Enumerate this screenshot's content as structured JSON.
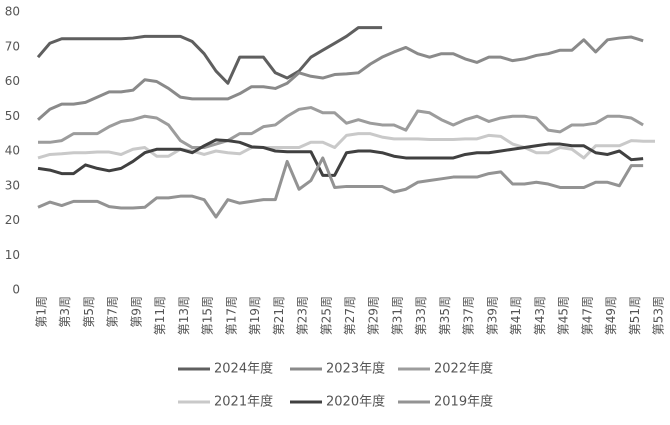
{
  "chart_data": {
    "type": "line",
    "categories": [
      "第1周",
      null,
      "第3周",
      null,
      "第5周",
      null,
      "第7周",
      null,
      "第9周",
      null,
      "第11周",
      null,
      "第13周",
      null,
      "第15周",
      null,
      "第17周",
      null,
      "第19周",
      null,
      "第21周",
      null,
      "第23周",
      null,
      "第25周",
      null,
      "第27周",
      null,
      "第29周",
      null,
      "第31周",
      null,
      "第33周",
      null,
      "第35周",
      null,
      "第37周",
      null,
      "第39周",
      null,
      "第41周",
      null,
      "第43周",
      null,
      "第45周",
      null,
      "第47周",
      null,
      "第49周",
      null,
      "第51周",
      null,
      "第53周"
    ],
    "series": [
      {
        "name": "2024年度",
        "color": "#5f5f5f",
        "values": [
          67,
          71,
          72.3,
          72.3,
          72.3,
          72.3,
          72.3,
          72.3,
          72.5,
          73,
          73,
          73,
          73,
          71.5,
          68,
          63,
          59.5,
          67,
          67,
          67,
          62.5,
          61,
          63,
          67,
          69,
          71,
          73,
          75.5,
          75.5,
          75.5,
          null,
          null,
          null,
          null,
          null,
          null,
          null,
          null,
          null,
          null,
          null,
          null,
          null,
          null,
          null,
          null,
          null,
          null,
          null,
          null,
          null,
          null,
          null
        ]
      },
      {
        "name": "2023年度",
        "color": "#8a8a8a",
        "values": [
          49,
          52,
          53.5,
          53.5,
          54,
          55.5,
          57,
          57,
          57.5,
          60.5,
          60,
          58,
          55.5,
          55,
          55,
          55,
          55,
          56.5,
          58.5,
          58.5,
          58,
          59.5,
          62.5,
          61.5,
          61,
          62,
          62.2,
          62.5,
          65,
          67,
          68.5,
          69.8,
          68,
          67,
          68,
          68,
          66.5,
          65.5,
          67,
          67,
          66,
          66.5,
          67.5,
          68,
          69,
          69,
          72,
          68.5,
          72,
          72.5,
          72.8,
          71.7,
          null
        ]
      },
      {
        "name": "2022年度",
        "color": "#9c9c9c",
        "values": [
          42.5,
          42.5,
          43,
          45,
          45,
          45,
          47,
          48.5,
          49,
          50,
          49.5,
          47.5,
          43,
          41,
          41,
          42,
          43,
          45,
          45,
          47,
          47.5,
          50,
          52,
          52.5,
          51,
          51,
          48,
          49,
          48,
          47.5,
          47.5,
          46,
          51.5,
          51,
          49,
          47.5,
          49,
          50,
          48.5,
          49.5,
          50,
          50,
          49.5,
          46,
          45.5,
          47.5,
          47.5,
          48,
          50,
          50,
          49.5,
          47.5,
          null
        ]
      },
      {
        "name": "2021年度",
        "color": "#c9c9c9",
        "values": [
          38,
          39,
          39.2,
          39.5,
          39.5,
          39.7,
          39.7,
          39,
          40.5,
          41,
          38.5,
          38.5,
          40.5,
          40,
          39,
          40,
          39.5,
          39.2,
          41,
          41,
          41,
          41,
          41,
          42.5,
          42.5,
          41,
          44.5,
          45,
          45,
          44,
          43.5,
          43.5,
          43.5,
          43.3,
          43.3,
          43.3,
          43.5,
          43.5,
          44.5,
          44.2,
          42,
          41,
          39.5,
          39.5,
          41,
          40.5,
          38,
          41.5,
          41.5,
          41.5,
          43,
          42.8,
          42.8
        ]
      },
      {
        "name": "2020年度",
        "color": "#404040",
        "values": [
          35,
          34.5,
          33.5,
          33.5,
          36,
          35,
          34.3,
          35,
          37,
          39.5,
          40.5,
          40.5,
          40.5,
          39.5,
          41.5,
          43.2,
          43,
          42.5,
          41.2,
          41,
          40,
          39.8,
          39.8,
          39.8,
          33,
          33,
          39.5,
          40,
          40,
          39.5,
          38.5,
          38,
          38,
          38,
          38,
          38,
          39,
          39.5,
          39.5,
          40,
          40.5,
          41,
          41.5,
          42,
          42,
          41.5,
          41.5,
          39.5,
          39,
          40,
          37.5,
          37.8,
          null
        ]
      },
      {
        "name": "2019年度",
        "color": "#939393",
        "values": [
          23.8,
          25.3,
          24.3,
          25.5,
          25.5,
          25.5,
          24,
          23.6,
          23.6,
          23.8,
          26.5,
          26.5,
          27,
          27,
          26,
          21,
          26,
          25,
          25.5,
          26,
          26,
          37,
          29,
          31.5,
          38,
          29.5,
          29.8,
          29.8,
          29.8,
          29.8,
          28.2,
          29,
          31,
          31.5,
          32,
          32.5,
          32.5,
          32.5,
          33.5,
          34,
          30.5,
          30.5,
          31,
          30.5,
          29.5,
          29.5,
          29.5,
          31,
          31,
          30,
          35.8,
          35.8,
          null
        ]
      }
    ],
    "ylim": [
      0,
      80
    ],
    "yticks": [
      0,
      10,
      20,
      30,
      40,
      50,
      60,
      70,
      80
    ],
    "grid": false,
    "legend": "bottom"
  }
}
